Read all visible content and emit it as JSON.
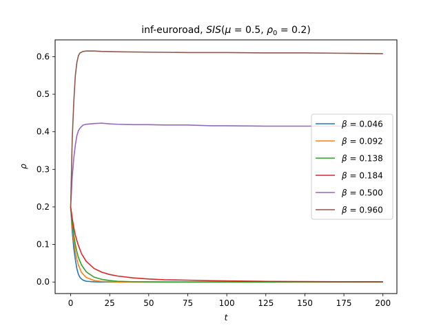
{
  "chart_data": {
    "type": "line",
    "title": "inf-euroroad, SIS(μ = 0.5, ρ₀ = 0.2)",
    "title_parts": {
      "prefix": "inf-euroroad, ",
      "model": "SIS",
      "open": "(",
      "mu": "μ",
      "mu_eq": " = 0.5, ",
      "rho": "ρ",
      "rho_sub": "0",
      "rho_eq": " = 0.2)"
    },
    "xlabel": "t",
    "ylabel": "ρ",
    "xlim": [
      -9.95,
      208.95
    ],
    "ylim": [
      -0.0307,
      0.6447
    ],
    "xticks": [
      0,
      25,
      50,
      75,
      100,
      125,
      150,
      175,
      200
    ],
    "yticks": [
      0.0,
      0.1,
      0.2,
      0.3,
      0.4,
      0.5,
      0.6
    ],
    "ytick_labels": [
      "0.0",
      "0.1",
      "0.2",
      "0.3",
      "0.4",
      "0.5",
      "0.6"
    ],
    "legend_position": "center-right",
    "grid": false,
    "series": [
      {
        "name": "β = 0.046",
        "label_beta": "β",
        "label_value": " = 0.046",
        "color": "#1f77b4",
        "points": [
          [
            0,
            0.2
          ],
          [
            1,
            0.135
          ],
          [
            2,
            0.09
          ],
          [
            3,
            0.06
          ],
          [
            4,
            0.035
          ],
          [
            5,
            0.02
          ],
          [
            6,
            0.012
          ],
          [
            7,
            0.008
          ],
          [
            8,
            0.005
          ],
          [
            10,
            0.002
          ],
          [
            15,
            0.0005
          ],
          [
            20,
            0.0
          ],
          [
            200,
            0.0
          ]
        ]
      },
      {
        "name": "β = 0.092",
        "label_beta": "β",
        "label_value": " = 0.092",
        "color": "#ff7f0e",
        "points": [
          [
            0,
            0.2
          ],
          [
            1,
            0.15
          ],
          [
            2,
            0.11
          ],
          [
            3,
            0.08
          ],
          [
            4,
            0.06
          ],
          [
            5,
            0.045
          ],
          [
            7,
            0.025
          ],
          [
            10,
            0.012
          ],
          [
            15,
            0.004
          ],
          [
            20,
            0.0015
          ],
          [
            30,
            0.0
          ],
          [
            200,
            0.0
          ]
        ]
      },
      {
        "name": "β = 0.138",
        "label_beta": "β",
        "label_value": " = 0.138",
        "color": "#2ca02c",
        "points": [
          [
            0,
            0.2
          ],
          [
            1,
            0.16
          ],
          [
            2,
            0.125
          ],
          [
            3,
            0.1
          ],
          [
            4,
            0.08
          ],
          [
            5,
            0.065
          ],
          [
            7,
            0.045
          ],
          [
            10,
            0.027
          ],
          [
            15,
            0.013
          ],
          [
            20,
            0.007
          ],
          [
            25,
            0.004
          ],
          [
            30,
            0.002
          ],
          [
            40,
            0.0008
          ],
          [
            60,
            0.0
          ],
          [
            200,
            0.0
          ]
        ]
      },
      {
        "name": "β = 0.184",
        "label_beta": "β",
        "label_value": " = 0.184",
        "color": "#d62728",
        "points": [
          [
            0,
            0.2
          ],
          [
            1,
            0.17
          ],
          [
            2,
            0.145
          ],
          [
            3,
            0.125
          ],
          [
            4,
            0.11
          ],
          [
            5,
            0.097
          ],
          [
            7,
            0.075
          ],
          [
            10,
            0.055
          ],
          [
            15,
            0.036
          ],
          [
            20,
            0.026
          ],
          [
            25,
            0.02
          ],
          [
            30,
            0.016
          ],
          [
            40,
            0.011
          ],
          [
            50,
            0.008
          ],
          [
            60,
            0.006
          ],
          [
            75,
            0.005
          ],
          [
            90,
            0.0035
          ],
          [
            100,
            0.003
          ],
          [
            125,
            0.0018
          ],
          [
            150,
            0.0012
          ],
          [
            175,
            0.0008
          ],
          [
            200,
            0.0007
          ]
        ]
      },
      {
        "name": "β = 0.500",
        "label_beta": "β",
        "label_value": " = 0.500",
        "color": "#9467bd",
        "points": [
          [
            0,
            0.2
          ],
          [
            1,
            0.28
          ],
          [
            2,
            0.33
          ],
          [
            3,
            0.365
          ],
          [
            4,
            0.39
          ],
          [
            5,
            0.403
          ],
          [
            6,
            0.41
          ],
          [
            8,
            0.418
          ],
          [
            10,
            0.42
          ],
          [
            15,
            0.422
          ],
          [
            20,
            0.423
          ],
          [
            25,
            0.421
          ],
          [
            30,
            0.42
          ],
          [
            40,
            0.419
          ],
          [
            50,
            0.419
          ],
          [
            60,
            0.418
          ],
          [
            75,
            0.418
          ],
          [
            90,
            0.416
          ],
          [
            100,
            0.416
          ],
          [
            125,
            0.415
          ],
          [
            150,
            0.415
          ],
          [
            175,
            0.415
          ],
          [
            200,
            0.414
          ]
        ]
      },
      {
        "name": "β = 0.960",
        "label_beta": "β",
        "label_value": " = 0.960",
        "color": "#8c564b",
        "points": [
          [
            0,
            0.2
          ],
          [
            1,
            0.38
          ],
          [
            2,
            0.48
          ],
          [
            3,
            0.55
          ],
          [
            4,
            0.585
          ],
          [
            5,
            0.603
          ],
          [
            6,
            0.61
          ],
          [
            8,
            0.614
          ],
          [
            10,
            0.615
          ],
          [
            15,
            0.615
          ],
          [
            20,
            0.614
          ],
          [
            30,
            0.613
          ],
          [
            50,
            0.612
          ],
          [
            75,
            0.611
          ],
          [
            100,
            0.611
          ],
          [
            125,
            0.61
          ],
          [
            150,
            0.61
          ],
          [
            175,
            0.609
          ],
          [
            200,
            0.608
          ]
        ]
      }
    ]
  }
}
